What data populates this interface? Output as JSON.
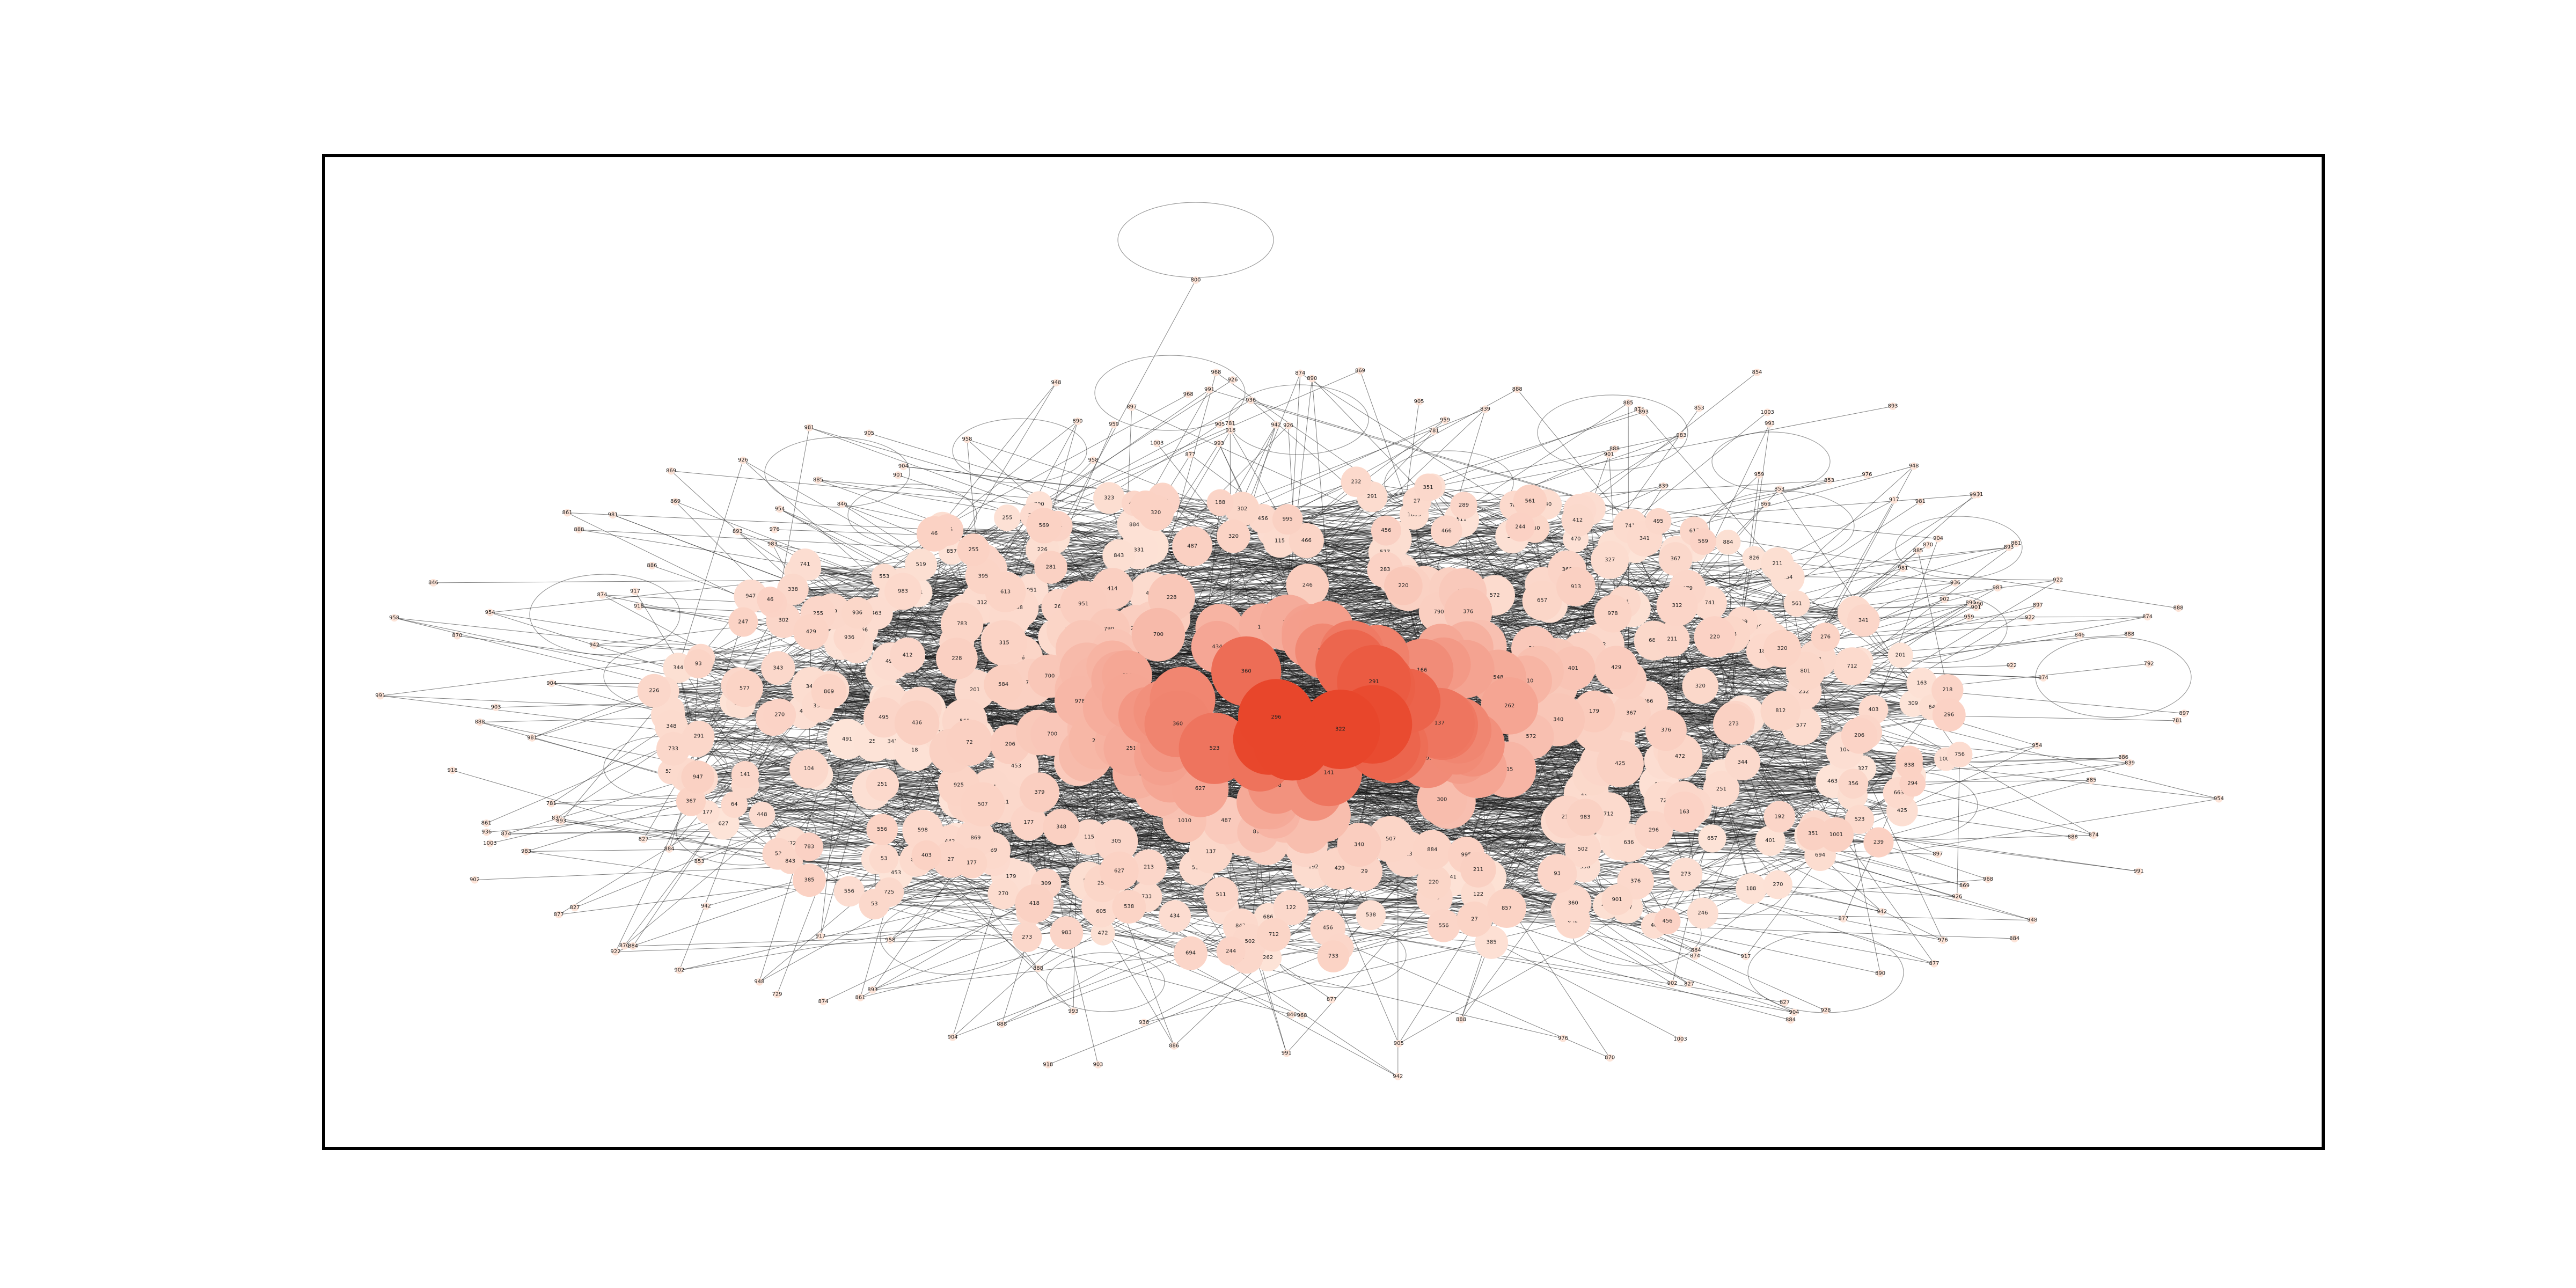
{
  "figure": {
    "kind": "network-graph",
    "colors": {
      "background": "#ffffff",
      "frame": "#000000",
      "edge": "#1a1a1a",
      "self_loop": "#9a9a9a",
      "node_low": "#fde4d8",
      "node_high": "#e8462b",
      "label": "#222222"
    },
    "node_colormap": "Reds",
    "node_labels": [
      "395",
      "309",
      "320",
      "376",
      "434",
      "356",
      "340",
      "341",
      "322",
      "323",
      "251",
      "270",
      "273",
      "291",
      "300",
      "312",
      "331",
      "343",
      "348",
      "360",
      "211",
      "220",
      "232",
      "246",
      "255",
      "262",
      "281",
      "289",
      "296",
      "305",
      "401",
      "414",
      "418",
      "429",
      "442",
      "456",
      "463",
      "470",
      "487",
      "491",
      "150",
      "166",
      "177",
      "188",
      "196",
      "201",
      "218",
      "226",
      "239",
      "244",
      "502",
      "519",
      "526",
      "533",
      "548",
      "556",
      "561",
      "577",
      "584",
      "598",
      "605",
      "613",
      "627",
      "636",
      "642",
      "657",
      "663",
      "671",
      "686",
      "694",
      "700",
      "712",
      "725",
      "733",
      "741",
      "756",
      "768",
      "775",
      "783",
      "790",
      "801",
      "812",
      "826",
      "838",
      "843",
      "857",
      "869",
      "872",
      "884",
      "896",
      "901",
      "913",
      "925",
      "936",
      "947",
      "951",
      "966",
      "978",
      "983",
      "995",
      "1001",
      "1003",
      "1010",
      "18",
      "27",
      "35",
      "46",
      "53",
      "64",
      "72",
      "81",
      "93",
      "104",
      "115",
      "122",
      "137",
      "141",
      "158",
      "163",
      "179",
      "185",
      "192",
      "206",
      "213",
      "228",
      "234",
      "247",
      "258",
      "263",
      "276",
      "283",
      "294",
      "302",
      "315",
      "327",
      "338",
      "344",
      "351",
      "367",
      "379",
      "385",
      "398",
      "403",
      "412",
      "425",
      "436",
      "448",
      "453",
      "466",
      "472",
      "484",
      "495",
      "507",
      "511",
      "523",
      "538",
      "542",
      "553",
      "569",
      "572"
    ],
    "periphery_labels": [
      "869",
      "904",
      "893",
      "890",
      "942",
      "981",
      "888",
      "884",
      "877",
      "874",
      "993",
      "1003",
      "781",
      "991",
      "958",
      "888",
      "827",
      "954",
      "901",
      "874",
      "839",
      "870",
      "885",
      "976",
      "905",
      "968",
      "846",
      "918",
      "936",
      "983",
      "853",
      "861",
      "886",
      "897",
      "917",
      "926",
      "948",
      "959",
      "902",
      "922"
    ]
  }
}
